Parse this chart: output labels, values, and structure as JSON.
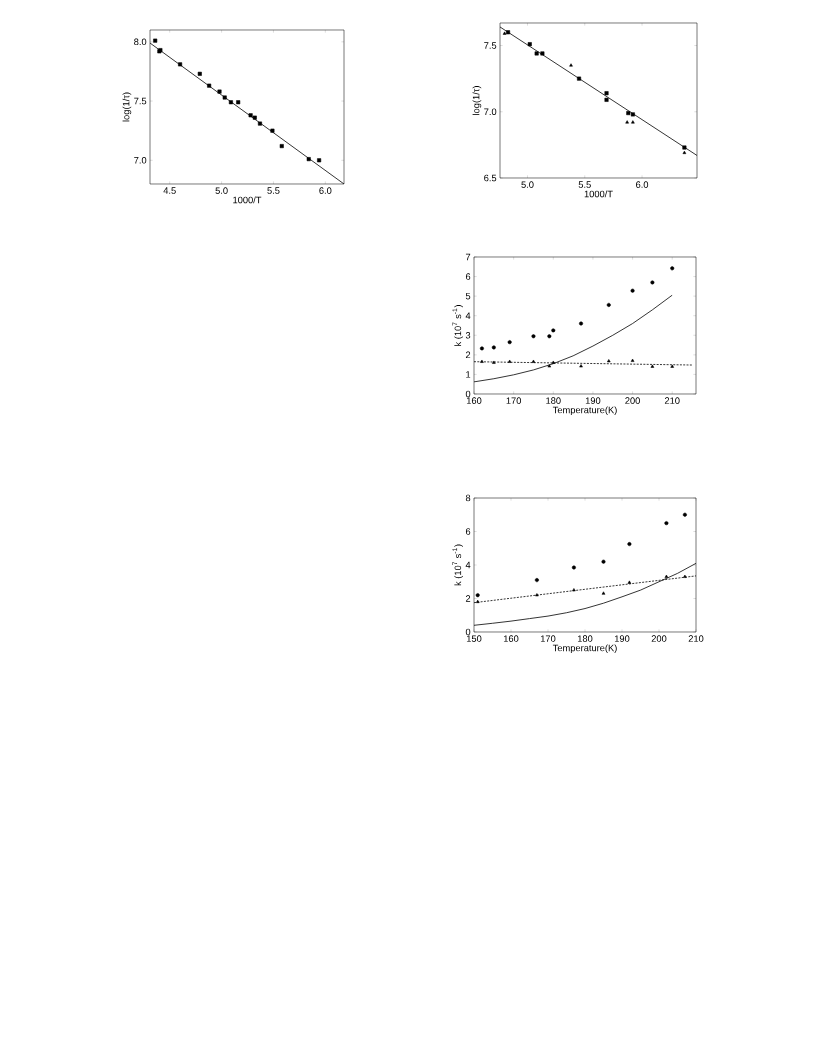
{
  "chart_data": [
    {
      "type": "scatter",
      "xlabel": "1000/T",
      "ylabel": "log(1/τ)",
      "xlim": [
        4.31,
        6.18
      ],
      "ylim": [
        6.8,
        8.1
      ],
      "xticks": [
        {
          "value": 4.5,
          "label": "4.5"
        },
        {
          "value": 5.0,
          "label": "5.0"
        },
        {
          "value": 5.5,
          "label": "5.5"
        },
        {
          "value": 6.0,
          "label": "6.0"
        }
      ],
      "yticks": [
        {
          "value": 7.0,
          "label": "7.0"
        },
        {
          "value": 7.5,
          "label": "7.5"
        },
        {
          "value": 8.0,
          "label": "8.0"
        }
      ],
      "series": [
        {
          "color": "#000000",
          "marker": "square",
          "x": [
            4.36,
            4.4,
            4.41,
            4.6,
            4.79,
            4.88,
            4.98,
            5.03,
            5.09,
            5.16,
            5.28,
            5.32,
            5.37,
            5.49,
            5.58,
            5.84,
            5.94
          ],
          "values": [
            8.01,
            7.92,
            7.93,
            7.81,
            7.73,
            7.63,
            7.58,
            7.53,
            7.49,
            7.49,
            7.38,
            7.36,
            7.31,
            7.25,
            7.12,
            7.01,
            7.0
          ]
        },
        {
          "type": "line",
          "color": "#000000",
          "line_style": "solid",
          "x": [
            4.31,
            6.18
          ],
          "values": [
            7.99,
            6.8
          ]
        }
      ]
    },
    {
      "type": "scatter",
      "xlabel": "1000/T",
      "ylabel": "log(1/τ)",
      "xlim": [
        4.76,
        6.48
      ],
      "ylim": [
        6.5,
        7.67
      ],
      "xticks": [
        {
          "value": 5.0,
          "label": "5.0"
        },
        {
          "value": 5.5,
          "label": "5.5"
        },
        {
          "value": 6.0,
          "label": "6.0"
        }
      ],
      "yticks": [
        {
          "value": 6.5,
          "label": "6.5"
        },
        {
          "value": 7.0,
          "label": "7.0"
        },
        {
          "value": 7.5,
          "label": "7.5"
        }
      ],
      "series": [
        {
          "color": "#000000",
          "marker": "square",
          "x": [
            4.83,
            5.02,
            5.08,
            5.13,
            5.45,
            5.69,
            5.69,
            5.88,
            5.92,
            6.37
          ],
          "values": [
            7.6,
            7.51,
            7.44,
            7.44,
            7.25,
            7.14,
            7.09,
            6.99,
            6.98,
            6.73
          ]
        },
        {
          "color": "#000000",
          "marker": "triangle",
          "x": [
            4.8,
            5.38,
            5.87,
            5.92,
            6.37
          ],
          "values": [
            7.59,
            7.35,
            6.92,
            6.92,
            6.69
          ]
        },
        {
          "type": "line",
          "color": "#000000",
          "line_style": "solid",
          "x": [
            4.76,
            6.48
          ],
          "values": [
            7.64,
            6.67
          ]
        }
      ]
    },
    {
      "type": "scatter",
      "xlabel": "Temperature(K)",
      "ylabel": "k (10$^{7}$ s$^{-1}$)",
      "xlim": [
        160,
        216
      ],
      "ylim": [
        0,
        7
      ],
      "xticks": [
        160,
        170,
        180,
        190,
        200,
        210
      ],
      "yticks": [
        0,
        1,
        2,
        3,
        4,
        5,
        6,
        7
      ],
      "series": [
        {
          "color": "#000000",
          "marker": "circle",
          "x": [
            162,
            165,
            169,
            175,
            179,
            180,
            187,
            194,
            200,
            205,
            210
          ],
          "values": [
            2.33,
            2.38,
            2.65,
            2.95,
            2.95,
            3.25,
            3.6,
            4.55,
            5.28,
            5.7,
            6.42
          ]
        },
        {
          "color": "#000000",
          "marker": "triangle",
          "x": [
            162,
            165,
            169,
            175,
            179,
            180,
            187,
            194,
            200,
            205,
            210
          ],
          "values": [
            1.65,
            1.6,
            1.65,
            1.65,
            1.42,
            1.6,
            1.42,
            1.68,
            1.7,
            1.4,
            1.4
          ]
        },
        {
          "type": "line",
          "color": "#000000",
          "line_style": "dashed",
          "x": [
            160,
            215
          ],
          "values": [
            1.65,
            1.48
          ]
        },
        {
          "type": "line",
          "color": "#000000",
          "line_style": "solid",
          "x": [
            160,
            165,
            170,
            175,
            180,
            185,
            190,
            195,
            200,
            205,
            210
          ],
          "values": [
            0.62,
            0.78,
            0.98,
            1.23,
            1.55,
            1.95,
            2.45,
            3.0,
            3.6,
            4.3,
            5.05
          ]
        }
      ]
    },
    {
      "type": "scatter",
      "xlabel": "Temperature(K)",
      "ylabel": "k (10$^{7}$ s$^{-1}$)",
      "xlim": [
        150,
        210
      ],
      "ylim": [
        0,
        8
      ],
      "xticks": [
        150,
        160,
        170,
        180,
        190,
        200,
        210
      ],
      "yticks": [
        0,
        2,
        4,
        6,
        8
      ],
      "series": [
        {
          "color": "#000000",
          "marker": "circle",
          "x": [
            151,
            167,
            177,
            185,
            192,
            202,
            207
          ],
          "values": [
            2.2,
            3.1,
            3.85,
            4.2,
            5.25,
            6.5,
            7.0
          ]
        },
        {
          "color": "#000000",
          "marker": "triangle",
          "x": [
            151,
            167,
            177,
            185,
            192,
            202,
            207
          ],
          "values": [
            1.8,
            2.2,
            2.5,
            2.3,
            2.95,
            3.3,
            3.3
          ]
        },
        {
          "type": "line",
          "color": "#000000",
          "line_style": "dashed",
          "x": [
            150,
            210
          ],
          "values": [
            1.75,
            3.35
          ]
        },
        {
          "type": "line",
          "color": "#000000",
          "line_style": "solid",
          "x": [
            150,
            155,
            160,
            165,
            170,
            175,
            180,
            185,
            190,
            195,
            200,
            205,
            210
          ],
          "values": [
            0.4,
            0.52,
            0.65,
            0.8,
            0.95,
            1.15,
            1.4,
            1.72,
            2.1,
            2.5,
            3.0,
            3.5,
            4.1
          ]
        }
      ]
    }
  ]
}
